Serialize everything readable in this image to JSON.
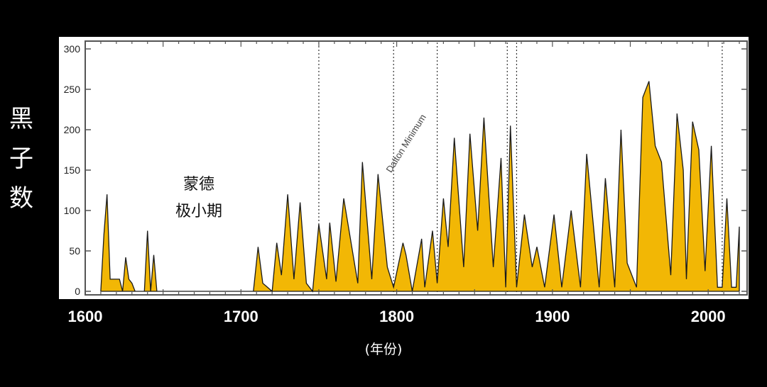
{
  "chart_data": {
    "type": "area",
    "title": "",
    "ylabel": "黑子数",
    "xlabel": "(年份)",
    "x_ticks": [
      "1600",
      "1700",
      "1800",
      "1900",
      "2000"
    ],
    "y_ticks": [
      "0",
      "50",
      "100",
      "150",
      "200",
      "250",
      "300"
    ],
    "xlim": [
      1600,
      2025
    ],
    "ylim": [
      0,
      300
    ],
    "grid": false,
    "fill_color": "#f2b705",
    "line_color": "#1a1a1a",
    "annotations": [
      {
        "text": "蒙德",
        "x": 1665,
        "y": 132
      },
      {
        "text": "极小期",
        "x": 1665,
        "y": 103
      },
      {
        "text": "Dalton Minimum",
        "x": 1800,
        "y": 190
      }
    ],
    "vlines": [
      1750,
      1798,
      1826,
      1871,
      1877,
      2009
    ],
    "series": [
      {
        "x": [
          1610,
          1612,
          1614,
          1616,
          1618,
          1620,
          1622,
          1624,
          1626,
          1628,
          1630,
          1632,
          1634,
          1636,
          1638,
          1640,
          1642,
          1644,
          1646,
          1648,
          1650,
          1655,
          1660,
          1665,
          1670,
          1675,
          1680,
          1685,
          1690,
          1695,
          1700,
          1705,
          1708,
          1711,
          1714,
          1717,
          1720,
          1723,
          1726,
          1730,
          1734,
          1738,
          1742,
          1746,
          1750,
          1755,
          1757,
          1761,
          1766,
          1769,
          1775,
          1778,
          1784,
          1788,
          1794,
          1798,
          1804,
          1806,
          1810,
          1816,
          1818,
          1823,
          1826,
          1830,
          1833,
          1837,
          1843,
          1847,
          1852,
          1856,
          1862,
          1867,
          1870,
          1873,
          1877,
          1882,
          1887,
          1890,
          1895,
          1901,
          1906,
          1912,
          1918,
          1922,
          1930,
          1934,
          1940,
          1944,
          1948,
          1954,
          1958,
          1962,
          1966,
          1970,
          1976,
          1980,
          1984,
          1986,
          1990,
          1994,
          1998,
          2002,
          2006,
          2009,
          2012,
          2015,
          2018,
          2020
        ],
        "y": [
          0,
          70,
          120,
          15,
          15,
          15,
          15,
          0,
          42,
          15,
          10,
          0,
          0,
          0,
          0,
          75,
          0,
          45,
          0,
          0,
          0,
          0,
          0,
          0,
          0,
          0,
          0,
          0,
          0,
          0,
          0,
          0,
          0,
          55,
          10,
          5,
          0,
          60,
          20,
          120,
          15,
          110,
          10,
          0,
          83,
          15,
          85,
          12,
          115,
          80,
          10,
          160,
          15,
          145,
          30,
          5,
          60,
          45,
          0,
          65,
          5,
          75,
          10,
          115,
          55,
          190,
          30,
          195,
          75,
          215,
          30,
          165,
          5,
          205,
          5,
          95,
          30,
          55,
          5,
          95,
          5,
          100,
          5,
          170,
          5,
          140,
          5,
          200,
          35,
          5,
          240,
          260,
          180,
          160,
          20,
          220,
          150,
          15,
          210,
          175,
          25,
          180,
          5,
          5,
          115,
          5,
          5,
          80
        ]
      }
    ]
  }
}
